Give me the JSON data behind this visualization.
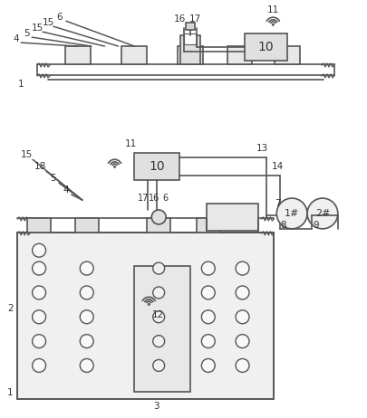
{
  "bg_color": "#ffffff",
  "line_color": "#555555",
  "fig_width": 4.06,
  "fig_height": 4.62,
  "dpi": 100
}
